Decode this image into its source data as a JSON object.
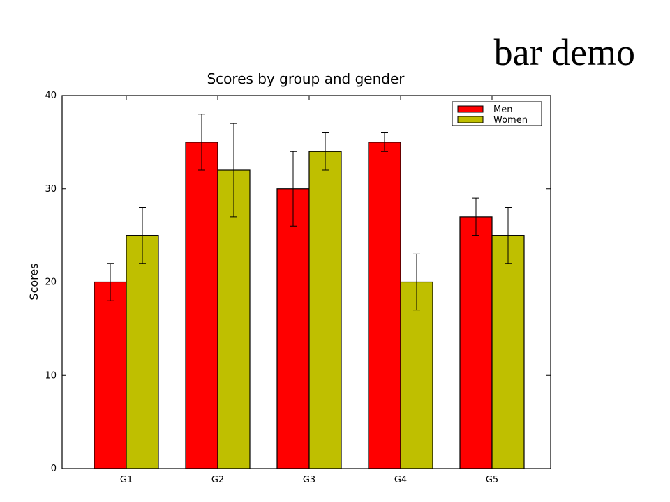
{
  "slide": {
    "title": "bar demo"
  },
  "colors": {
    "men": "#ff0000",
    "women": "#bfbf00"
  },
  "chart_data": {
    "type": "bar",
    "title": "Scores by group and gender",
    "xlabel": "",
    "ylabel": "Scores",
    "categories": [
      "G1",
      "G2",
      "G3",
      "G4",
      "G5"
    ],
    "ylim": [
      0,
      40
    ],
    "yticks": [
      0,
      10,
      20,
      30,
      40
    ],
    "grid": false,
    "legend_position": "top-right",
    "series": [
      {
        "name": "Men",
        "values": [
          20,
          35,
          30,
          35,
          27
        ],
        "errors": [
          2,
          3,
          4,
          1,
          2
        ]
      },
      {
        "name": "Women",
        "values": [
          25,
          32,
          34,
          20,
          25
        ],
        "errors": [
          3,
          5,
          2,
          3,
          3
        ]
      }
    ]
  }
}
